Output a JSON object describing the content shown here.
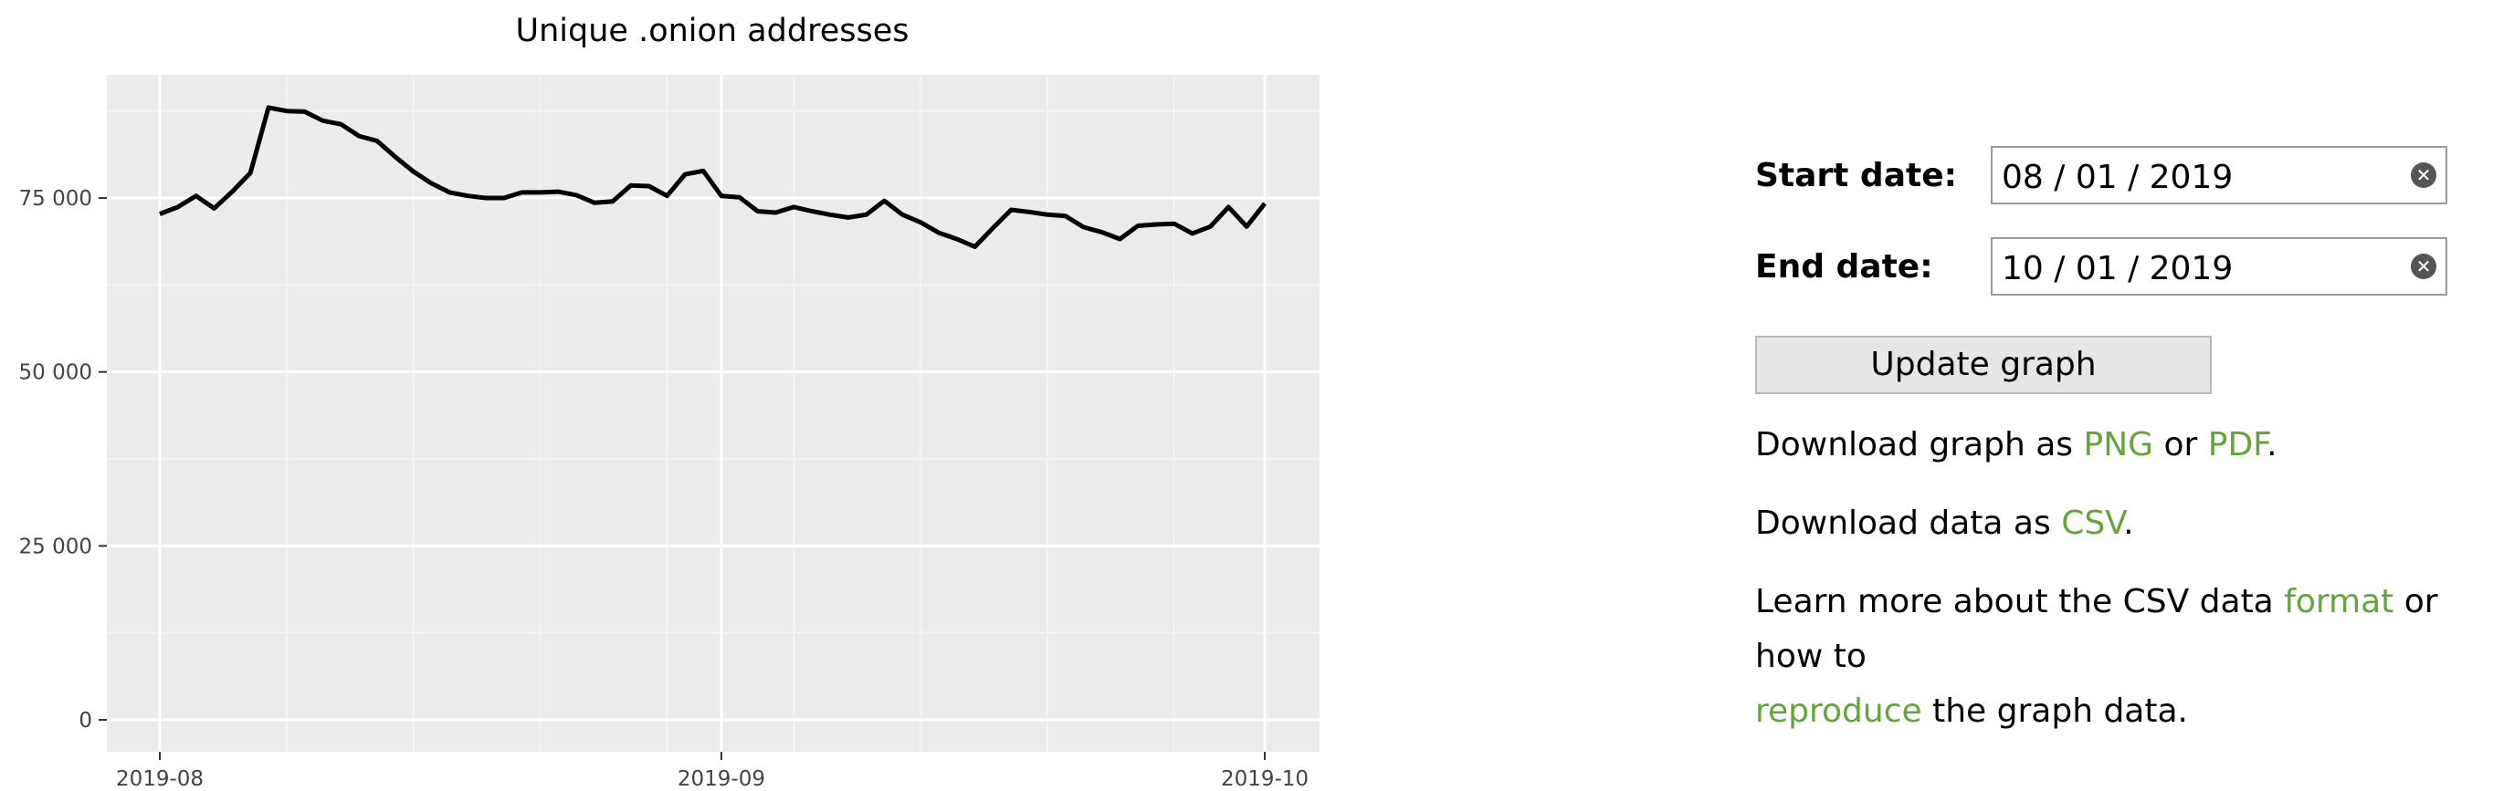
{
  "chart_data": {
    "type": "line",
    "title": "Unique .onion addresses",
    "xlabel": "",
    "ylabel": "",
    "x_ticks": [
      "2019-08",
      "2019-09",
      "2019-10"
    ],
    "y_ticks": [
      "0",
      "25 000",
      "50 000",
      "75 000"
    ],
    "ylim": [
      0,
      90000
    ],
    "grid": true,
    "legend": "none",
    "series": [
      {
        "values": [
          [
            "2019-08-01",
            72700
          ],
          [
            "2019-08-02",
            73700
          ],
          [
            "2019-08-03",
            75300
          ],
          [
            "2019-08-04",
            73500
          ],
          [
            "2019-08-05",
            75900
          ],
          [
            "2019-08-06",
            78600
          ],
          [
            "2019-08-07",
            88000
          ],
          [
            "2019-08-08",
            87500
          ],
          [
            "2019-08-09",
            87400
          ],
          [
            "2019-08-10",
            86100
          ],
          [
            "2019-08-11",
            85600
          ],
          [
            "2019-08-12",
            83900
          ],
          [
            "2019-08-13",
            83200
          ],
          [
            "2019-08-14",
            80900
          ],
          [
            "2019-08-15",
            78800
          ],
          [
            "2019-08-16",
            77100
          ],
          [
            "2019-08-17",
            75800
          ],
          [
            "2019-08-18",
            75300
          ],
          [
            "2019-08-19",
            75000
          ],
          [
            "2019-08-20",
            75000
          ],
          [
            "2019-08-21",
            75800
          ],
          [
            "2019-08-22",
            75800
          ],
          [
            "2019-08-23",
            75900
          ],
          [
            "2019-08-24",
            75400
          ],
          [
            "2019-08-25",
            74300
          ],
          [
            "2019-08-26",
            74500
          ],
          [
            "2019-08-27",
            76800
          ],
          [
            "2019-08-28",
            76700
          ],
          [
            "2019-08-29",
            75300
          ],
          [
            "2019-08-30",
            78400
          ],
          [
            "2019-08-31",
            78900
          ],
          [
            "2019-09-01",
            75300
          ],
          [
            "2019-09-02",
            75100
          ],
          [
            "2019-09-03",
            73100
          ],
          [
            "2019-09-04",
            72900
          ],
          [
            "2019-09-05",
            73700
          ],
          [
            "2019-09-06",
            73100
          ],
          [
            "2019-09-07",
            72600
          ],
          [
            "2019-09-08",
            72200
          ],
          [
            "2019-09-09",
            72600
          ],
          [
            "2019-09-10",
            74600
          ],
          [
            "2019-09-11",
            72600
          ],
          [
            "2019-09-12",
            71500
          ],
          [
            "2019-09-13",
            70000
          ],
          [
            "2019-09-14",
            69100
          ],
          [
            "2019-09-15",
            68000
          ],
          [
            "2019-09-16",
            70700
          ],
          [
            "2019-09-17",
            73300
          ],
          [
            "2019-09-18",
            73000
          ],
          [
            "2019-09-19",
            72600
          ],
          [
            "2019-09-20",
            72400
          ],
          [
            "2019-09-21",
            70800
          ],
          [
            "2019-09-22",
            70100
          ],
          [
            "2019-09-23",
            69100
          ],
          [
            "2019-09-24",
            71000
          ],
          [
            "2019-09-25",
            71200
          ],
          [
            "2019-09-26",
            71300
          ],
          [
            "2019-09-27",
            69900
          ],
          [
            "2019-09-28",
            70900
          ],
          [
            "2019-09-29",
            73700
          ],
          [
            "2019-09-30",
            70900
          ],
          [
            "2019-10-01",
            74200
          ]
        ]
      }
    ]
  },
  "controls": {
    "start_label": "Start date:",
    "start_value": "08 / 01 / 2019",
    "end_label": "End date:",
    "end_value": "10 / 01 / 2019",
    "update_button": "Update graph"
  },
  "downloads": {
    "graph_prefix": "Download graph as ",
    "png": "PNG",
    "or": " or ",
    "pdf": "PDF",
    "graph_suffix": ".",
    "data_prefix": "Download data as ",
    "csv": "CSV",
    "data_suffix": "."
  },
  "learn": {
    "prefix": "Learn more about the CSV data ",
    "format": "format",
    "middle": " or how to",
    "reproduce": "reproduce",
    "suffix": " the graph data."
  },
  "colors": {
    "panel_bg": "#ebebeb",
    "grid_major": "#ffffff",
    "line": "#000000",
    "link": "#62a53a"
  }
}
